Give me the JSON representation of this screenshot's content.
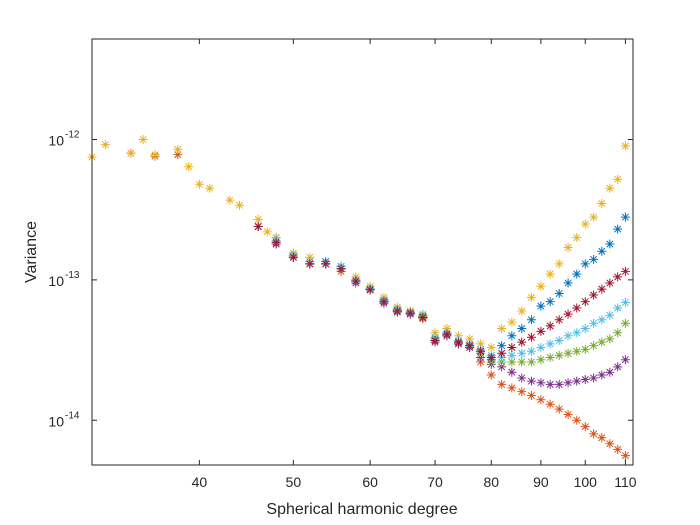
{
  "chart_data": {
    "type": "scatter",
    "title": "",
    "xlabel": "Spherical harmonic degree",
    "ylabel": "Variance",
    "x_scale": "log",
    "y_scale": "log",
    "xlim": [
      31,
      112
    ],
    "ylim": [
      4.8e-15,
      5.2e-12
    ],
    "x_ticks": [
      40,
      50,
      60,
      70,
      80,
      90,
      100,
      110
    ],
    "x_tick_labels": [
      "40",
      "50",
      "60",
      "70",
      "80",
      "90",
      "100",
      "110"
    ],
    "y_ticks": [
      1e-14,
      1e-13,
      1e-12
    ],
    "y_tick_labels": [
      {
        "base": "10",
        "exp": "-14"
      },
      {
        "base": "10",
        "exp": "-13"
      },
      {
        "base": "10",
        "exp": "-12"
      }
    ],
    "grid": false,
    "legend": "none",
    "marker": "*",
    "series": [
      {
        "color": "#0072BD",
        "x": [
          46,
          48,
          50,
          52,
          54,
          56,
          58,
          60,
          62,
          64,
          66,
          68,
          70,
          72,
          74,
          76,
          78,
          80,
          82,
          84,
          86,
          88,
          90,
          92,
          94,
          96,
          98,
          100,
          102,
          104,
          106,
          108,
          110
        ],
        "y": [
          2.4e-13,
          2e-13,
          1.5e-13,
          1.3e-13,
          1.35e-13,
          1.25e-13,
          1e-13,
          8.5e-14,
          7.2e-14,
          6.2e-14,
          5.8e-14,
          5.5e-14,
          3.8e-14,
          4e-14,
          3.5e-14,
          3.4e-14,
          3.1e-14,
          2.7e-14,
          3.4e-14,
          4e-14,
          4.5e-14,
          5.2e-14,
          6.5e-14,
          7e-14,
          8e-14,
          9.5e-14,
          1.1e-13,
          1.3e-13,
          1.4e-13,
          1.6e-13,
          1.8e-13,
          2.3e-13,
          2.8e-13
        ]
      },
      {
        "color": "#D95319",
        "x": [
          34,
          36,
          38,
          46,
          48,
          50,
          52,
          54,
          56,
          58,
          60,
          62,
          64,
          66,
          68,
          70,
          72,
          74,
          76,
          78,
          80,
          82,
          84,
          86,
          88,
          90,
          92,
          94,
          96,
          98,
          100,
          102,
          104,
          106,
          108,
          110
        ],
        "y": [
          8e-13,
          7.6e-13,
          7.8e-13,
          2.4e-13,
          1.8e-13,
          1.45e-13,
          1.35e-13,
          1.3e-13,
          1.15e-13,
          9.8e-14,
          8.6e-14,
          7e-14,
          6e-14,
          5.8e-14,
          5.3e-14,
          3.7e-14,
          4.2e-14,
          3.6e-14,
          3.3e-14,
          2.6e-14,
          2.1e-14,
          1.8e-14,
          1.7e-14,
          1.6e-14,
          1.5e-14,
          1.4e-14,
          1.3e-14,
          1.2e-14,
          1.1e-14,
          1e-14,
          9e-15,
          8e-15,
          7.5e-15,
          6.8e-15,
          6.2e-15,
          5.6e-15
        ]
      },
      {
        "color": "#EDB120",
        "x": [
          31,
          32,
          34,
          35,
          36,
          38,
          39,
          40,
          41,
          43,
          44,
          46,
          47,
          48,
          50,
          52,
          54,
          56,
          58,
          60,
          62,
          64,
          66,
          68,
          70,
          72,
          74,
          76,
          78,
          80,
          82,
          84,
          86,
          88,
          90,
          92,
          94,
          96,
          98,
          100,
          102,
          104,
          106,
          108,
          110
        ],
        "y": [
          7.5e-13,
          9.2e-13,
          8e-13,
          1e-12,
          7.8e-13,
          8.5e-13,
          6.4e-13,
          4.8e-13,
          4.5e-13,
          3.7e-13,
          3.4e-13,
          2.7e-13,
          2.2e-13,
          2e-13,
          1.55e-13,
          1.45e-13,
          1.3e-13,
          1.2e-13,
          1.05e-13,
          9e-14,
          7.5e-14,
          6.4e-14,
          6e-14,
          5.7e-14,
          4.2e-14,
          4.5e-14,
          4e-14,
          3.8e-14,
          3.5e-14,
          3.3e-14,
          4.5e-14,
          5e-14,
          6e-14,
          7.5e-14,
          9e-14,
          1.1e-13,
          1.3e-13,
          1.7e-13,
          2e-13,
          2.5e-13,
          2.8e-13,
          3.5e-13,
          4.5e-13,
          5.2e-13,
          9e-13
        ]
      },
      {
        "color": "#7E2F8E",
        "x": [
          46,
          48,
          50,
          52,
          54,
          56,
          58,
          60,
          62,
          64,
          66,
          68,
          70,
          72,
          74,
          76,
          78,
          80,
          82,
          84,
          86,
          88,
          90,
          92,
          94,
          96,
          98,
          100,
          102,
          104,
          106,
          108,
          110
        ],
        "y": [
          2.4e-13,
          1.8e-13,
          1.45e-13,
          1.3e-13,
          1.3e-13,
          1.2e-13,
          9.5e-14,
          8.5e-14,
          6.8e-14,
          5.9e-14,
          5.7e-14,
          5.4e-14,
          3.6e-14,
          4e-14,
          3.5e-14,
          3.3e-14,
          2.8e-14,
          2.5e-14,
          2.4e-14,
          2.2e-14,
          2e-14,
          1.9e-14,
          1.85e-14,
          1.8e-14,
          1.8e-14,
          1.85e-14,
          1.9e-14,
          1.95e-14,
          2e-14,
          2.1e-14,
          2.2e-14,
          2.4e-14,
          2.7e-14
        ]
      },
      {
        "color": "#77AC30",
        "x": [
          46,
          48,
          50,
          52,
          54,
          56,
          58,
          60,
          62,
          64,
          66,
          68,
          70,
          72,
          74,
          76,
          78,
          80,
          82,
          84,
          86,
          88,
          90,
          92,
          94,
          96,
          98,
          100,
          102,
          104,
          106,
          108,
          110
        ],
        "y": [
          2.4e-13,
          1.9e-13,
          1.5e-13,
          1.35e-13,
          1.3e-13,
          1.2e-13,
          1e-13,
          8.6e-14,
          7e-14,
          6.1e-14,
          5.8e-14,
          5.5e-14,
          3.8e-14,
          4.1e-14,
          3.6e-14,
          3.4e-14,
          3e-14,
          2.6e-14,
          2.6e-14,
          2.6e-14,
          2.6e-14,
          2.6e-14,
          2.7e-14,
          2.8e-14,
          2.9e-14,
          3e-14,
          3.1e-14,
          3.2e-14,
          3.4e-14,
          3.6e-14,
          3.8e-14,
          4.2e-14,
          4.9e-14
        ]
      },
      {
        "color": "#4DBEEE",
        "x": [
          46,
          48,
          50,
          52,
          54,
          56,
          58,
          60,
          62,
          64,
          66,
          68,
          70,
          72,
          74,
          76,
          78,
          80,
          82,
          84,
          86,
          88,
          90,
          92,
          94,
          96,
          98,
          100,
          102,
          104,
          106,
          108,
          110
        ],
        "y": [
          2.4e-13,
          1.9e-13,
          1.5e-13,
          1.35e-13,
          1.3e-13,
          1.25e-13,
          1e-13,
          8.7e-14,
          7.1e-14,
          6.2e-14,
          5.9e-14,
          5.6e-14,
          3.9e-14,
          4.2e-14,
          3.7e-14,
          3.5e-14,
          3.2e-14,
          2.9e-14,
          2.8e-14,
          2.9e-14,
          3e-14,
          3.1e-14,
          3.3e-14,
          3.5e-14,
          3.7e-14,
          4e-14,
          4.2e-14,
          4.5e-14,
          4.9e-14,
          5.2e-14,
          5.6e-14,
          6.3e-14,
          6.9e-14
        ]
      },
      {
        "color": "#A2142F",
        "x": [
          46,
          48,
          50,
          52,
          54,
          56,
          58,
          60,
          62,
          64,
          66,
          68,
          70,
          72,
          74,
          76,
          78,
          80,
          82,
          84,
          86,
          88,
          90,
          92,
          94,
          96,
          98,
          100,
          102,
          104,
          106,
          108,
          110
        ],
        "y": [
          2.4e-13,
          1.85e-13,
          1.45e-13,
          1.3e-13,
          1.3e-13,
          1.2e-13,
          9.8e-14,
          8.5e-14,
          7e-14,
          6e-14,
          5.8e-14,
          5.4e-14,
          3.7e-14,
          4.1e-14,
          3.6e-14,
          3.4e-14,
          3.1e-14,
          2.8e-14,
          3e-14,
          3.3e-14,
          3.6e-14,
          3.9e-14,
          4.3e-14,
          4.7e-14,
          5.2e-14,
          5.7e-14,
          6.3e-14,
          7e-14,
          7.8e-14,
          8.6e-14,
          9.5e-14,
          1.05e-13,
          1.15e-13
        ]
      }
    ]
  }
}
